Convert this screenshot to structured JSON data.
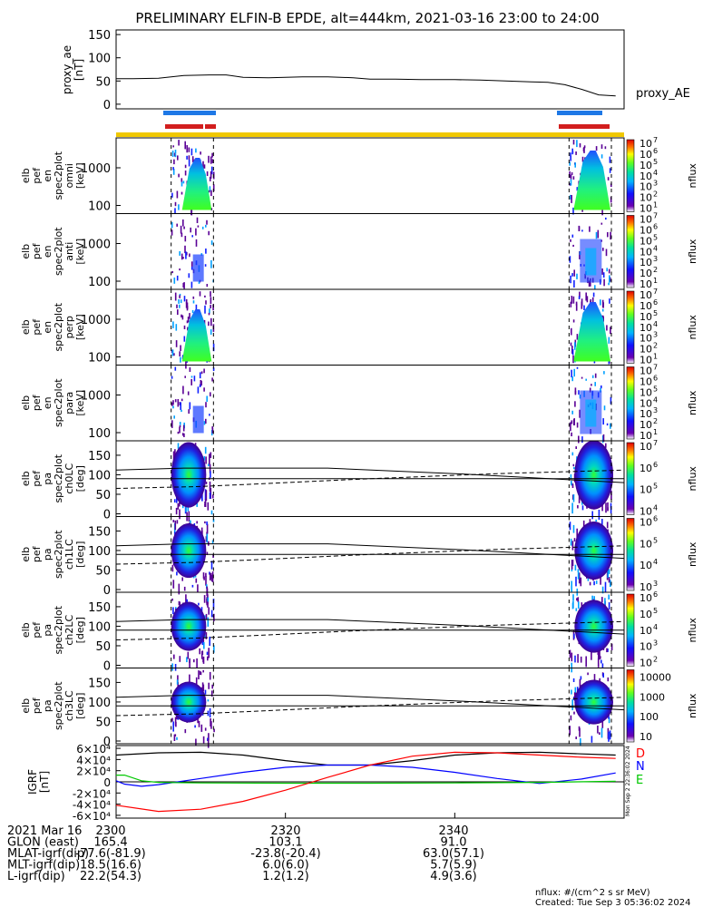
{
  "title": "PRELIMINARY ELFIN-B EPDE, alt=444km, 2021-03-16 23:00 to 24:00",
  "chart_data": [
    {
      "type": "line",
      "ylabel": [
        "proxy_ae",
        "[nT]"
      ],
      "legend": "proxy_AE",
      "yticks": [
        0,
        50,
        100,
        150
      ],
      "ylim": [
        -10,
        160
      ],
      "x": [
        2300,
        2302,
        2305,
        2308,
        2311,
        2313,
        2315,
        2318,
        2320,
        2322,
        2325,
        2328,
        2330,
        2333,
        2336,
        2340,
        2343,
        2346,
        2349,
        2351,
        2353,
        2355,
        2357,
        2359
      ],
      "y": [
        55,
        55,
        56,
        62,
        63,
        63,
        58,
        57,
        58,
        59,
        59,
        57,
        54,
        54,
        53,
        53,
        52,
        50,
        48,
        47,
        42,
        32,
        20,
        18
      ]
    },
    {
      "type": "spectrogram",
      "ylabel": [
        "elb",
        "pef",
        "en",
        "spec2plot",
        "omni",
        "[keV]"
      ],
      "yticks": [
        "100",
        "1000"
      ],
      "zlabel": "nflux",
      "ztick_exponents": [
        "7",
        "6",
        "5",
        "4",
        "3",
        "2",
        "1"
      ]
    },
    {
      "type": "spectrogram",
      "ylabel": [
        "elb",
        "pef",
        "en",
        "spec2plot",
        "anti",
        "[keV]"
      ],
      "yticks": [
        "100",
        "1000"
      ],
      "zlabel": "nflux",
      "ztick_exponents": [
        "7",
        "6",
        "5",
        "4",
        "3",
        "2",
        "1"
      ]
    },
    {
      "type": "spectrogram",
      "ylabel": [
        "elb",
        "pef",
        "en",
        "spec2plot",
        "perp",
        "[keV]"
      ],
      "yticks": [
        "100",
        "1000"
      ],
      "zlabel": "nflux",
      "ztick_exponents": [
        "7",
        "6",
        "5",
        "4",
        "3",
        "2",
        "1"
      ]
    },
    {
      "type": "spectrogram",
      "ylabel": [
        "elb",
        "pef",
        "en",
        "spec2plot",
        "para",
        "[keV]"
      ],
      "yticks": [
        "100",
        "1000"
      ],
      "zlabel": "nflux",
      "ztick_exponents": [
        "7",
        "6",
        "5",
        "4",
        "3",
        "2",
        "1"
      ]
    },
    {
      "type": "spectrogram",
      "ylabel": [
        "elb",
        "pef",
        "pa",
        "spec2plot",
        "ch0LC",
        "[deg]"
      ],
      "yticks": [
        "0",
        "50",
        "100",
        "150"
      ],
      "zlabel": "nflux",
      "ztick_exponents": [
        "7",
        "6",
        "5",
        "4"
      ]
    },
    {
      "type": "spectrogram",
      "ylabel": [
        "elb",
        "pef",
        "pa",
        "spec2plot",
        "ch1LC",
        "[deg]"
      ],
      "yticks": [
        "0",
        "50",
        "100",
        "150"
      ],
      "zlabel": "nflux",
      "ztick_exponents": [
        "6",
        "5",
        "4",
        "3"
      ]
    },
    {
      "type": "spectrogram",
      "ylabel": [
        "elb",
        "pef",
        "pa",
        "spec2plot",
        "ch2LC",
        "[deg]"
      ],
      "yticks": [
        "0",
        "50",
        "100",
        "150"
      ],
      "zlabel": "nflux",
      "ztick_exponents": [
        "6",
        "5",
        "4",
        "3",
        "2"
      ]
    },
    {
      "type": "spectrogram",
      "ylabel": [
        "elb",
        "pef",
        "pa",
        "spec2plot",
        "ch3LC",
        "[deg]"
      ],
      "yticks": [
        "0",
        "50",
        "100",
        "150"
      ],
      "zlabel": "nflux",
      "zticks": [
        "10000",
        "1000",
        "100",
        "10"
      ]
    },
    {
      "type": "line",
      "ylabel": [
        "IGRF",
        "[nT]"
      ],
      "yticks": [
        "-6×10⁴",
        "-4×10⁴",
        "-2×10⁴",
        "0",
        "2×10⁴",
        "4×10⁴",
        "6×10⁴"
      ],
      "ylim": [
        -65000,
        65000
      ],
      "series": [
        {
          "name": "D",
          "color": "#000000",
          "x": [
            2300,
            2305,
            2310,
            2315,
            2320,
            2325,
            2330,
            2335,
            2340,
            2345,
            2350,
            2355,
            2359
          ],
          "y": [
            48000,
            52000,
            53000,
            48000,
            38000,
            30000,
            30000,
            38000,
            48000,
            52000,
            53000,
            50000,
            48000
          ]
        },
        {
          "name": "N",
          "color": "#0000ff",
          "x": [
            2300,
            2301,
            2303,
            2305,
            2310,
            2315,
            2320,
            2325,
            2330,
            2335,
            2340,
            2345,
            2350,
            2355,
            2359
          ],
          "y": [
            2000,
            -4000,
            -8000,
            -5000,
            6000,
            17000,
            26000,
            30000,
            30000,
            26000,
            17000,
            6000,
            -3000,
            5000,
            16000
          ]
        },
        {
          "name": "E",
          "color": "#00c800",
          "x": [
            2300,
            2301,
            2303,
            2305,
            2310,
            2320,
            2330,
            2340,
            2350,
            2359
          ],
          "y": [
            12000,
            12000,
            2000,
            -1000,
            -2000,
            -2500,
            -2500,
            -2000,
            -1000,
            1000
          ]
        },
        {
          "name": "",
          "color": "#ff0000",
          "x": [
            2300,
            2305,
            2310,
            2315,
            2320,
            2325,
            2330,
            2335,
            2340,
            2345,
            2350,
            2355,
            2359
          ],
          "y": [
            -42000,
            -53000,
            -49000,
            -35000,
            -15000,
            8000,
            30000,
            46000,
            53000,
            52000,
            48000,
            44000,
            42000
          ]
        }
      ]
    }
  ],
  "legend_labels": {
    "d": "D",
    "n": "N",
    "e": "E"
  },
  "xlabel_rows": [
    {
      "label": "2021 Mar 16",
      "v0": "2300",
      "v1": "2320",
      "v2": "2340"
    },
    {
      "label": "GLON (east)",
      "v0": "165.4",
      "v1": "103.1",
      "v2": "91.0"
    },
    {
      "label": "MLAT-igrf(dip)",
      "v0": "-77.6(-81.9)",
      "v1": "-23.8(-20.4)",
      "v2": "63.0(57.1)"
    },
    {
      "label": "MLT-igrf(dip)",
      "v0": "18.5(16.6)",
      "v1": "6.0(6.0)",
      "v2": "5.7(5.9)"
    },
    {
      "label": "L-igrf(dip)",
      "v0": "22.2(54.3)",
      "v1": "1.2(1.2)",
      "v2": "4.9(3.6)"
    }
  ],
  "footer": {
    "units": "nflux: #/(cm^2 s sr MeV)",
    "created": "Created: Tue Sep  3 05:36:02 2024",
    "side_stamp": "Mon Sep  2 22:36:02 2024"
  },
  "colors": {
    "orbit_bar": "#f0c800",
    "science_bar_blue": "#1e78e6",
    "science_bar_red": "#d21e1e"
  }
}
